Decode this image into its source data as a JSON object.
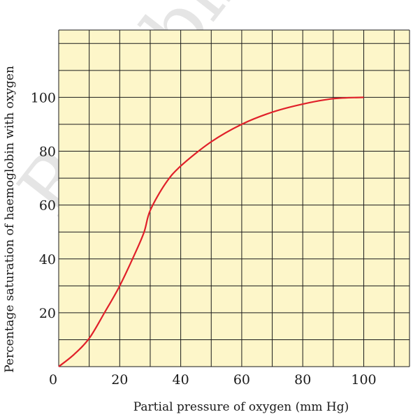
{
  "chart_data": {
    "type": "line",
    "title": "",
    "xlabel": "Partial pressure of oxygen (mm Hg)",
    "ylabel": "Percentage saturation of haemoglobin with oxygen",
    "xlim": [
      0,
      115
    ],
    "ylim": [
      0,
      125
    ],
    "x_ticks": [
      0,
      20,
      40,
      60,
      80,
      100
    ],
    "y_ticks": [
      20,
      40,
      60,
      80,
      100
    ],
    "x_tick_labels": [
      "0",
      "20",
      "40",
      "60",
      "80",
      "100"
    ],
    "y_tick_labels": [
      "20",
      "40",
      "60",
      "80",
      "100"
    ],
    "grid": true,
    "x_grid_step": 10,
    "y_grid_step": 10,
    "legend": "none",
    "background_color": "#fdf6c9",
    "grid_color": "#1a1a1a",
    "line_color": "#e0202a",
    "series": [
      {
        "x": [
          0,
          5,
          10,
          15,
          20,
          25,
          28,
          30,
          35,
          40,
          50,
          60,
          70,
          80,
          90,
          100
        ],
        "y": [
          0,
          4.5,
          10.5,
          20,
          30,
          42,
          50,
          58,
          68,
          74.5,
          83.5,
          90,
          94.5,
          97.5,
          99.5,
          100
        ]
      }
    ]
  },
  "watermark": {
    "text": "Republished"
  }
}
